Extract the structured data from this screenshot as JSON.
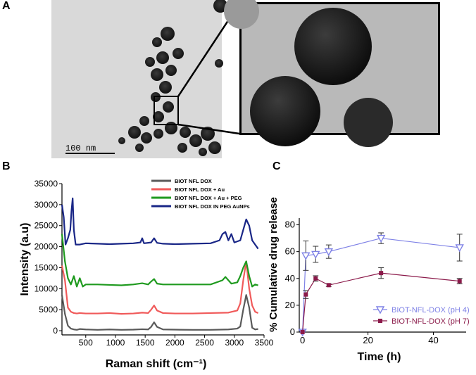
{
  "panels": {
    "a": "A",
    "b": "B",
    "c": "C"
  },
  "tem": {
    "scale_label": "100 nm"
  },
  "chart_data": [
    {
      "type": "line",
      "xlabel": "Raman shift (cm⁻¹)",
      "ylabel": "Intensity (a.u)",
      "xlim": [
        100,
        3500
      ],
      "ylim": [
        -1000,
        35000
      ],
      "xticks": [
        500,
        1000,
        1500,
        2000,
        2500,
        3000,
        3500
      ],
      "yticks": [
        0,
        5000,
        10000,
        15000,
        20000,
        25000,
        30000,
        35000
      ],
      "legend_placement": "top-right",
      "series": [
        {
          "name": "BIOT NFL DOX",
          "color": "#5a5a5a",
          "x": [
            100,
            150,
            200,
            250,
            300,
            350,
            400,
            500,
            700,
            900,
            1100,
            1300,
            1450,
            1550,
            1600,
            1650,
            1700,
            1800,
            2000,
            2300,
            2600,
            2900,
            3050,
            3100,
            3150,
            3200,
            3250,
            3300,
            3350,
            3400
          ],
          "y": [
            8500,
            4000,
            1200,
            500,
            300,
            200,
            400,
            300,
            200,
            300,
            200,
            250,
            350,
            300,
            900,
            2000,
            900,
            300,
            250,
            200,
            200,
            300,
            500,
            1000,
            5000,
            8500,
            5500,
            700,
            300,
            400
          ]
        },
        {
          "name": "BIOT NFL DOX + Au",
          "color": "#f05a5a",
          "x": [
            100,
            150,
            200,
            250,
            300,
            350,
            400,
            500,
            700,
            900,
            1100,
            1300,
            1450,
            1550,
            1600,
            1650,
            1700,
            1800,
            2000,
            2300,
            2600,
            2900,
            3050,
            3100,
            3150,
            3200,
            3250,
            3300,
            3350,
            3400
          ],
          "y": [
            15500,
            12000,
            5500,
            4500,
            4200,
            4100,
            4200,
            4100,
            4100,
            4200,
            4000,
            4100,
            4300,
            4200,
            5000,
            6000,
            4800,
            4200,
            4100,
            4100,
            4200,
            4300,
            4800,
            6500,
            12000,
            16500,
            10000,
            6000,
            4500,
            4200
          ]
        },
        {
          "name": "BIOT NFL DOX + Au + PEG",
          "color": "#1f9a1f",
          "x": [
            100,
            150,
            200,
            250,
            300,
            350,
            400,
            450,
            500,
            700,
            900,
            1100,
            1300,
            1450,
            1550,
            1600,
            1650,
            1700,
            1800,
            2000,
            2300,
            2600,
            2800,
            2850,
            2900,
            2950,
            3050,
            3100,
            3150,
            3200,
            3250,
            3300,
            3350,
            3400
          ],
          "y": [
            23000,
            16500,
            12500,
            11000,
            13000,
            10500,
            12500,
            10500,
            11000,
            11000,
            10900,
            10800,
            11000,
            11300,
            11000,
            11700,
            12300,
            11200,
            11000,
            11000,
            11000,
            11000,
            12000,
            12800,
            12000,
            11200,
            11500,
            13000,
            15000,
            16500,
            13000,
            10500,
            11000,
            10800
          ]
        },
        {
          "name": "BIOT NFL DOX IN PEG AuNPs",
          "color": "#1a2787",
          "x": [
            100,
            130,
            160,
            200,
            240,
            260,
            280,
            300,
            330,
            400,
            500,
            700,
            900,
            1100,
            1300,
            1420,
            1450,
            1480,
            1600,
            1650,
            1700,
            1800,
            2000,
            2300,
            2600,
            2750,
            2800,
            2850,
            2900,
            2950,
            3000,
            3100,
            3150,
            3200,
            3250,
            3300,
            3350,
            3400
          ],
          "y": [
            30000,
            27000,
            20500,
            22000,
            24000,
            28500,
            31500,
            24000,
            20500,
            20500,
            20800,
            20700,
            20600,
            20700,
            20800,
            21000,
            22000,
            20800,
            21000,
            22000,
            20900,
            20700,
            20600,
            20700,
            20800,
            21500,
            23000,
            23500,
            21500,
            23000,
            21000,
            21500,
            24000,
            26500,
            25000,
            21500,
            20500,
            19500
          ]
        }
      ]
    },
    {
      "type": "line",
      "xlabel": "Time (h)",
      "ylabel": "% Cumulative drug release",
      "xlim": [
        -1,
        50
      ],
      "ylim": [
        0,
        85
      ],
      "xticks": [
        0,
        20,
        40
      ],
      "yticks": [
        0,
        20,
        40,
        60,
        80
      ],
      "legend_placement": "bottom-right",
      "series": [
        {
          "name": "BIOT-NFL-DOX (pH 4)",
          "color": "#7f82e6",
          "marker": "triangle-down",
          "x": [
            0,
            1,
            4,
            8,
            24,
            48
          ],
          "y": [
            0,
            57,
            58,
            60,
            70,
            63
          ],
          "err": [
            0,
            11,
            6,
            5,
            4,
            10
          ]
        },
        {
          "name": "BIOT-NFL-DOX (pH 7)",
          "color": "#8b1a4a",
          "marker": "square",
          "x": [
            0,
            1,
            4,
            8,
            24,
            48
          ],
          "y": [
            0,
            28,
            40,
            35,
            44,
            38
          ],
          "err": [
            0,
            3,
            2,
            1,
            4,
            2
          ]
        }
      ]
    }
  ]
}
